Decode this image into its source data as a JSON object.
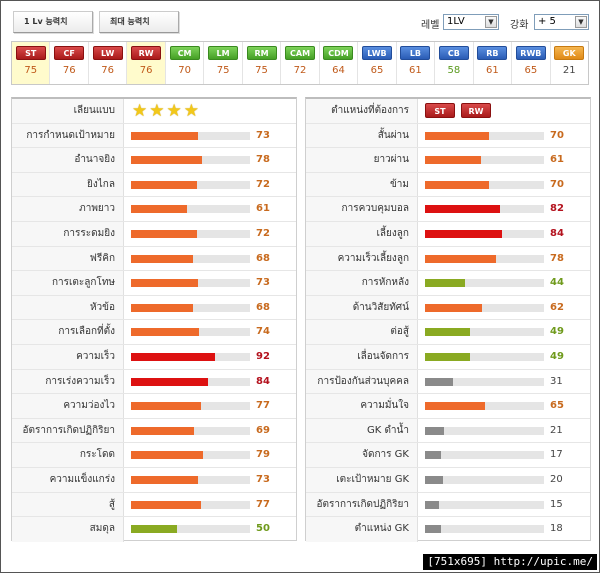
{
  "tabs": [
    {
      "label": "1 Lv 능력치"
    },
    {
      "label": "최대 능력치"
    }
  ],
  "controls": {
    "level_label": "레벨",
    "level_value": "1LV",
    "enhance_label": "강화",
    "enhance_value": "+ 5"
  },
  "positions": [
    {
      "code": "ST",
      "value": "75",
      "color": "red",
      "selected": true
    },
    {
      "code": "CF",
      "value": "76",
      "color": "red",
      "selected": false
    },
    {
      "code": "LW",
      "value": "76",
      "color": "red",
      "selected": false
    },
    {
      "code": "RW",
      "value": "76",
      "color": "red",
      "selected": true
    },
    {
      "code": "CM",
      "value": "70",
      "color": "green",
      "selected": false
    },
    {
      "code": "LM",
      "value": "75",
      "color": "green",
      "selected": false
    },
    {
      "code": "RM",
      "value": "75",
      "color": "green",
      "selected": false
    },
    {
      "code": "CAM",
      "value": "72",
      "color": "green",
      "selected": false
    },
    {
      "code": "CDM",
      "value": "64",
      "color": "green",
      "selected": false
    },
    {
      "code": "LWB",
      "value": "65",
      "color": "blue",
      "selected": false
    },
    {
      "code": "LB",
      "value": "61",
      "color": "blue",
      "selected": false
    },
    {
      "code": "CB",
      "value": "58",
      "color": "blue",
      "selected": false
    },
    {
      "code": "RB",
      "value": "61",
      "color": "blue",
      "selected": false
    },
    {
      "code": "RWB",
      "value": "65",
      "color": "blue",
      "selected": false
    },
    {
      "code": "GK",
      "value": "21",
      "color": "orange",
      "selected": false
    }
  ],
  "left_panel": {
    "stars_label": "เลียนแบบ",
    "stars": 4,
    "stats": [
      {
        "label": "การกำหนดเป้าหมาย",
        "value": 73,
        "color": "orange"
      },
      {
        "label": "อำนาจยิง",
        "value": 78,
        "color": "orange"
      },
      {
        "label": "ยิงไกล",
        "value": 72,
        "color": "orange"
      },
      {
        "label": "ภาพยาว",
        "value": 61,
        "color": "orange"
      },
      {
        "label": "การระดมยิง",
        "value": 72,
        "color": "orange"
      },
      {
        "label": "ฟรีคิก",
        "value": 68,
        "color": "orange"
      },
      {
        "label": "การเตะลูกโทษ",
        "value": 73,
        "color": "orange"
      },
      {
        "label": "หัวข้อ",
        "value": 68,
        "color": "orange"
      },
      {
        "label": "การเลือกที่ตั้ง",
        "value": 74,
        "color": "orange"
      },
      {
        "label": "ความเร็ว",
        "value": 92,
        "color": "red"
      },
      {
        "label": "การเร่งความเร็ว",
        "value": 84,
        "color": "red"
      },
      {
        "label": "ความว่องไว",
        "value": 77,
        "color": "orange"
      },
      {
        "label": "อัตราการเกิดปฏิกิริยา",
        "value": 69,
        "color": "orange"
      },
      {
        "label": "กระโดด",
        "value": 79,
        "color": "orange"
      },
      {
        "label": "ความแข็งแกร่ง",
        "value": 73,
        "color": "orange"
      },
      {
        "label": "สู้",
        "value": 77,
        "color": "orange"
      },
      {
        "label": "สมดุล",
        "value": 50,
        "color": "green"
      }
    ]
  },
  "right_panel": {
    "positions_label": "ตำแหน่งที่ต้องการ",
    "preferred_positions": [
      "ST",
      "RW"
    ],
    "stats": [
      {
        "label": "สั้นผ่าน",
        "value": 70,
        "color": "orange"
      },
      {
        "label": "ยาวผ่าน",
        "value": 61,
        "color": "orange"
      },
      {
        "label": "ข้าม",
        "value": 70,
        "color": "orange"
      },
      {
        "label": "การควบคุมบอล",
        "value": 82,
        "color": "red"
      },
      {
        "label": "เลี้ยงลูก",
        "value": 84,
        "color": "red"
      },
      {
        "label": "ความเร็วเลี้ยงลูก",
        "value": 78,
        "color": "orange"
      },
      {
        "label": "การหักหลัง",
        "value": 44,
        "color": "green"
      },
      {
        "label": "ด้านวิสัยทัศน์",
        "value": 62,
        "color": "orange"
      },
      {
        "label": "ต่อสู้",
        "value": 49,
        "color": "green"
      },
      {
        "label": "เลื่อนจัดการ",
        "value": 49,
        "color": "green"
      },
      {
        "label": "การป้องกันส่วนบุคคล",
        "value": 31,
        "color": "gray"
      },
      {
        "label": "ความมั่นใจ",
        "value": 65,
        "color": "orange"
      },
      {
        "label": "GK ดำน้ำ",
        "value": 21,
        "color": "gray"
      },
      {
        "label": "จัดการ GK",
        "value": 17,
        "color": "gray"
      },
      {
        "label": "เตะเป้าหมาย GK",
        "value": 20,
        "color": "gray"
      },
      {
        "label": "อัตราการเกิดปฏิกิริยา GK",
        "value": 15,
        "color": "gray"
      },
      {
        "label": "ตำแหน่ง GK",
        "value": 18,
        "color": "gray"
      }
    ]
  },
  "watermark": "[751x695] http://upic.me/"
}
